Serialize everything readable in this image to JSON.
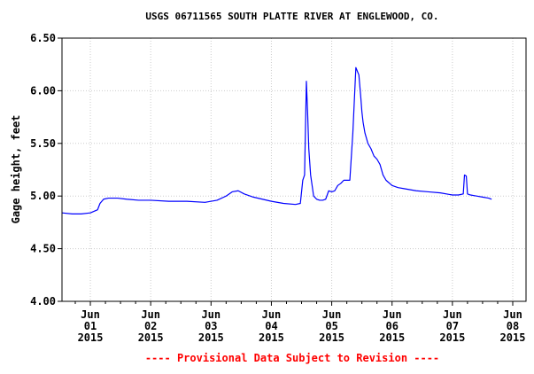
{
  "chart_data": {
    "type": "line",
    "title": "USGS 06711565 SOUTH PLATTE RIVER AT ENGLEWOOD, CO.",
    "ylabel": "Gage height, feet",
    "xlabel": "",
    "note": "---- Provisional Data Subject to Revision ----",
    "ylim": [
      4.0,
      6.5
    ],
    "xlim": [
      -0.47,
      7.22
    ],
    "y_ticks": [
      "4.00",
      "4.50",
      "5.00",
      "5.50",
      "6.00",
      "6.50"
    ],
    "x_ticks": [
      {
        "pos": 0,
        "line1": "Jun",
        "line2": "01",
        "line3": "2015"
      },
      {
        "pos": 1,
        "line1": "Jun",
        "line2": "02",
        "line3": "2015"
      },
      {
        "pos": 2,
        "line1": "Jun",
        "line2": "03",
        "line3": "2015"
      },
      {
        "pos": 3,
        "line1": "Jun",
        "line2": "04",
        "line3": "2015"
      },
      {
        "pos": 4,
        "line1": "Jun",
        "line2": "05",
        "line3": "2015"
      },
      {
        "pos": 5,
        "line1": "Jun",
        "line2": "06",
        "line3": "2015"
      },
      {
        "pos": 6,
        "line1": "Jun",
        "line2": "07",
        "line3": "2015"
      },
      {
        "pos": 7,
        "line1": "Jun",
        "line2": "08",
        "line3": "2015"
      }
    ],
    "grid": true,
    "series": [
      {
        "color": "#0000ff",
        "x": [
          -0.47,
          -0.3,
          -0.15,
          0.0,
          0.12,
          0.16,
          0.22,
          0.3,
          0.45,
          0.6,
          0.8,
          1.0,
          1.3,
          1.6,
          1.9,
          2.1,
          2.25,
          2.35,
          2.45,
          2.55,
          2.7,
          2.85,
          3.0,
          3.2,
          3.4,
          3.48,
          3.52,
          3.55,
          3.58,
          3.6,
          3.62,
          3.65,
          3.7,
          3.75,
          3.8,
          3.85,
          3.9,
          3.95,
          4.0,
          4.05,
          4.1,
          4.15,
          4.2,
          4.3,
          4.35,
          4.4,
          4.45,
          4.48,
          4.5,
          4.52,
          4.55,
          4.6,
          4.65,
          4.7,
          4.75,
          4.8,
          4.85,
          4.9,
          5.0,
          5.1,
          5.2,
          5.4,
          5.6,
          5.8,
          6.0,
          6.1,
          6.18,
          6.2,
          6.23,
          6.25,
          6.3,
          6.4,
          6.5,
          6.6,
          6.65
        ],
        "values": [
          4.84,
          4.83,
          4.83,
          4.84,
          4.87,
          4.93,
          4.97,
          4.98,
          4.98,
          4.97,
          4.96,
          4.96,
          4.95,
          4.95,
          4.94,
          4.96,
          5.0,
          5.04,
          5.05,
          5.02,
          4.99,
          4.97,
          4.95,
          4.93,
          4.92,
          4.93,
          5.15,
          5.2,
          6.09,
          5.8,
          5.45,
          5.2,
          5.0,
          4.97,
          4.96,
          4.96,
          4.97,
          5.05,
          5.04,
          5.05,
          5.1,
          5.12,
          5.15,
          5.15,
          5.6,
          6.22,
          6.15,
          5.95,
          5.8,
          5.7,
          5.6,
          5.5,
          5.45,
          5.38,
          5.35,
          5.3,
          5.2,
          5.15,
          5.1,
          5.08,
          5.07,
          5.05,
          5.04,
          5.03,
          5.01,
          5.01,
          5.02,
          5.2,
          5.19,
          5.02,
          5.01,
          5.0,
          4.99,
          4.98,
          4.97
        ]
      }
    ]
  }
}
